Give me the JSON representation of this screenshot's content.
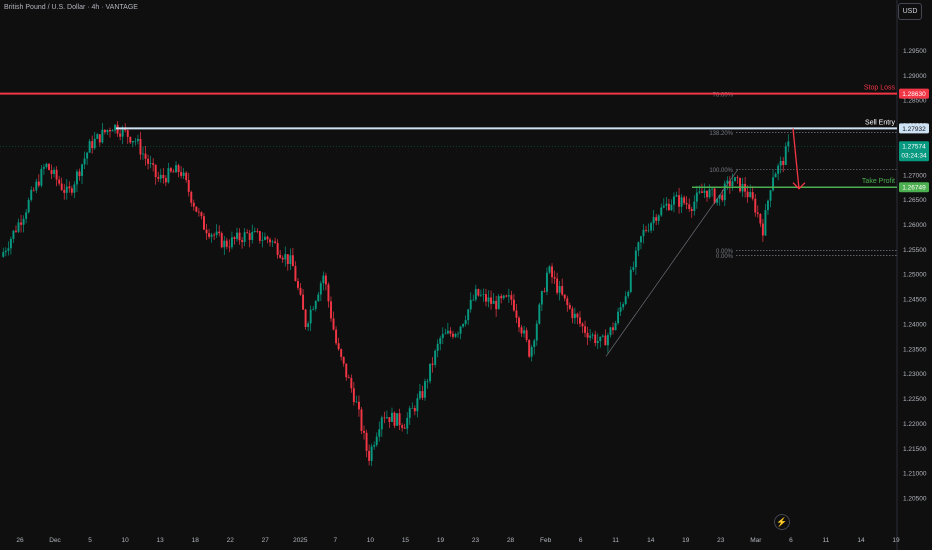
{
  "header": {
    "title": "British Pound / U.S. Dollar · 4h · VANTAGE",
    "currency_button": "USD"
  },
  "icons": {
    "replay": "lightning-icon"
  },
  "colors": {
    "background": "#0f0f0f",
    "bull": "#089981",
    "bear": "#f23645",
    "stop_loss": "#f23645",
    "sell_entry": "#cfe2f3",
    "take_profit": "#4caf50",
    "current_price": "#089981"
  },
  "chart_data": {
    "type": "candlestick",
    "ylim": [
      1.2,
      1.3
    ],
    "y_ticks": [
      "1.29500",
      "1.29000",
      "1.28500",
      "1.28000",
      "1.27500",
      "1.27000",
      "1.26500",
      "1.26000",
      "1.25500",
      "1.25000",
      "1.24500",
      "1.24000",
      "1.23500",
      "1.23000",
      "1.22500",
      "1.22000",
      "1.21500",
      "1.21000",
      "1.20500"
    ],
    "x_ticks": [
      "26",
      "Dec",
      "5",
      "10",
      "13",
      "18",
      "22",
      "27",
      "2025",
      "7",
      "10",
      "15",
      "19",
      "23",
      "28",
      "Feb",
      "6",
      "11",
      "14",
      "19",
      "23",
      "Mar",
      "6",
      "11",
      "14",
      "19"
    ],
    "close_path": [
      [
        0,
        1.2535
      ],
      [
        0.025,
        1.262
      ],
      [
        0.05,
        1.272
      ],
      [
        0.075,
        1.266
      ],
      [
        0.1,
        1.276
      ],
      [
        0.125,
        1.28
      ],
      [
        0.15,
        1.277
      ],
      [
        0.175,
        1.269
      ],
      [
        0.2,
        1.271
      ],
      [
        0.225,
        1.26
      ],
      [
        0.25,
        1.256
      ],
      [
        0.275,
        1.258
      ],
      [
        0.3,
        1.257
      ],
      [
        0.325,
        1.252
      ],
      [
        0.34,
        1.24
      ],
      [
        0.36,
        1.25
      ],
      [
        0.375,
        1.235
      ],
      [
        0.395,
        1.225
      ],
      [
        0.41,
        1.213
      ],
      [
        0.425,
        1.222
      ],
      [
        0.45,
        1.22
      ],
      [
        0.47,
        1.226
      ],
      [
        0.49,
        1.237
      ],
      [
        0.51,
        1.239
      ],
      [
        0.53,
        1.246
      ],
      [
        0.55,
        1.244
      ],
      [
        0.57,
        1.245
      ],
      [
        0.59,
        1.234
      ],
      [
        0.61,
        1.251
      ],
      [
        0.63,
        1.244
      ],
      [
        0.65,
        1.239
      ],
      [
        0.67,
        1.236
      ],
      [
        0.685,
        1.24
      ],
      [
        0.7,
        1.248
      ],
      [
        0.715,
        1.258
      ],
      [
        0.73,
        1.262
      ],
      [
        0.75,
        1.265
      ],
      [
        0.77,
        1.264
      ],
      [
        0.785,
        1.267
      ],
      [
        0.8,
        1.265
      ],
      [
        0.815,
        1.269
      ],
      [
        0.83,
        1.267
      ],
      [
        0.84,
        1.264
      ],
      [
        0.85,
        1.259
      ],
      [
        0.86,
        1.27
      ],
      [
        0.87,
        1.272
      ],
      [
        0.878,
        1.2757
      ]
    ],
    "current_price": {
      "value": 1.27574,
      "label": "1.27574",
      "countdown": "03:24:34"
    },
    "levels": [
      {
        "name": "Stop Loss",
        "value": 1.2863,
        "label": "1.28630",
        "text": "Stop Loss"
      },
      {
        "name": "Sell Entry",
        "value": 1.27932,
        "label": "1.27932",
        "text": "Sell Entry"
      },
      {
        "name": "Take Profit",
        "value": 1.26749,
        "label": "1.26749",
        "text": "Take Profit"
      }
    ],
    "fibonacci": [
      {
        "label": "78.60%",
        "value": 1.2862
      },
      {
        "label": "138.20%",
        "value": 1.2785
      },
      {
        "label": "100.00%",
        "value": 1.2711
      },
      {
        "label": "0.00%",
        "value": 1.2548
      },
      {
        "label": "0.00%",
        "value": 1.2538
      }
    ]
  }
}
